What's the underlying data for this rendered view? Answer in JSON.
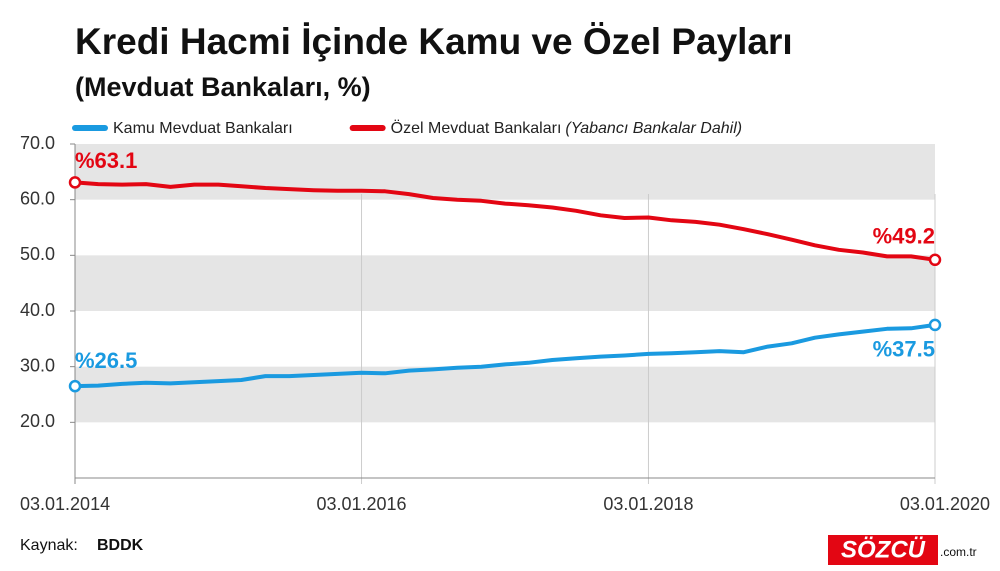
{
  "chart_data": {
    "type": "line",
    "title": "Kredi Hacmi İçinde Kamu ve Özel Payları",
    "subtitle": "(Mevduat Bankaları, %)",
    "x": [
      "2014-01-03",
      "2014-03-03",
      "2014-05-03",
      "2014-07-03",
      "2014-09-03",
      "2014-11-03",
      "2015-01-03",
      "2015-03-03",
      "2015-05-03",
      "2015-07-03",
      "2015-09-03",
      "2015-11-03",
      "2016-01-03",
      "2016-03-03",
      "2016-05-03",
      "2016-07-03",
      "2016-09-03",
      "2016-11-03",
      "2017-01-03",
      "2017-03-03",
      "2017-05-03",
      "2017-07-03",
      "2017-09-03",
      "2017-11-03",
      "2018-01-03",
      "2018-03-03",
      "2018-05-03",
      "2018-07-03",
      "2018-09-03",
      "2018-11-03",
      "2019-01-03",
      "2019-03-03",
      "2019-05-03",
      "2019-07-03",
      "2019-09-03",
      "2019-11-03",
      "2020-01-03"
    ],
    "series": [
      {
        "name": "Kamu Mevduat Bankaları",
        "color": "#1a9ae0",
        "start_label": "%26.5",
        "end_label": "%37.5",
        "values": [
          26.5,
          26.6,
          26.9,
          27.1,
          27.0,
          27.2,
          27.4,
          27.6,
          28.3,
          28.3,
          28.5,
          28.7,
          28.9,
          28.8,
          29.3,
          29.5,
          29.8,
          30.0,
          30.4,
          30.7,
          31.2,
          31.5,
          31.8,
          32.0,
          32.3,
          32.4,
          32.6,
          32.8,
          32.6,
          33.6,
          34.2,
          35.2,
          35.8,
          36.3,
          36.8,
          36.9,
          37.5
        ]
      },
      {
        "name": "Özel Mevduat Bankaları",
        "note": "(Yabancı Bankalar Dahil)",
        "color": "#e30613",
        "start_label": "%63.1",
        "end_label": "%49.2",
        "values": [
          63.1,
          62.8,
          62.7,
          62.8,
          62.3,
          62.7,
          62.7,
          62.4,
          62.1,
          61.9,
          61.7,
          61.6,
          61.6,
          61.5,
          61.0,
          60.3,
          60.0,
          59.8,
          59.3,
          59.0,
          58.6,
          58.0,
          57.2,
          56.7,
          56.8,
          56.3,
          56.0,
          55.5,
          54.7,
          53.8,
          52.8,
          51.8,
          51.0,
          50.5,
          49.8,
          49.8,
          49.2
        ]
      }
    ],
    "xlim": [
      "2014-01-03",
      "2020-01-03"
    ],
    "xticks": [
      {
        "value": "2014-01-03",
        "label": "03.01.2014"
      },
      {
        "value": "2016-01-03",
        "label": "03.01.2016"
      },
      {
        "value": "2018-01-03",
        "label": "03.01.2018"
      },
      {
        "value": "2020-01-03",
        "label": "03.01.2020"
      }
    ],
    "ylim": [
      10,
      70
    ],
    "yticks": [
      {
        "value": 20,
        "label": "20.0"
      },
      {
        "value": 30,
        "label": "30.0"
      },
      {
        "value": 40,
        "label": "40.0"
      },
      {
        "value": 50,
        "label": "50.0"
      },
      {
        "value": 60,
        "label": "60.0"
      },
      {
        "value": 70,
        "label": "70.0"
      }
    ],
    "bands": true,
    "source": {
      "label": "Kaynak:",
      "value": "BDDK"
    },
    "logo": {
      "name": "SÖZCÜ",
      "suffix": ".com.tr"
    }
  }
}
